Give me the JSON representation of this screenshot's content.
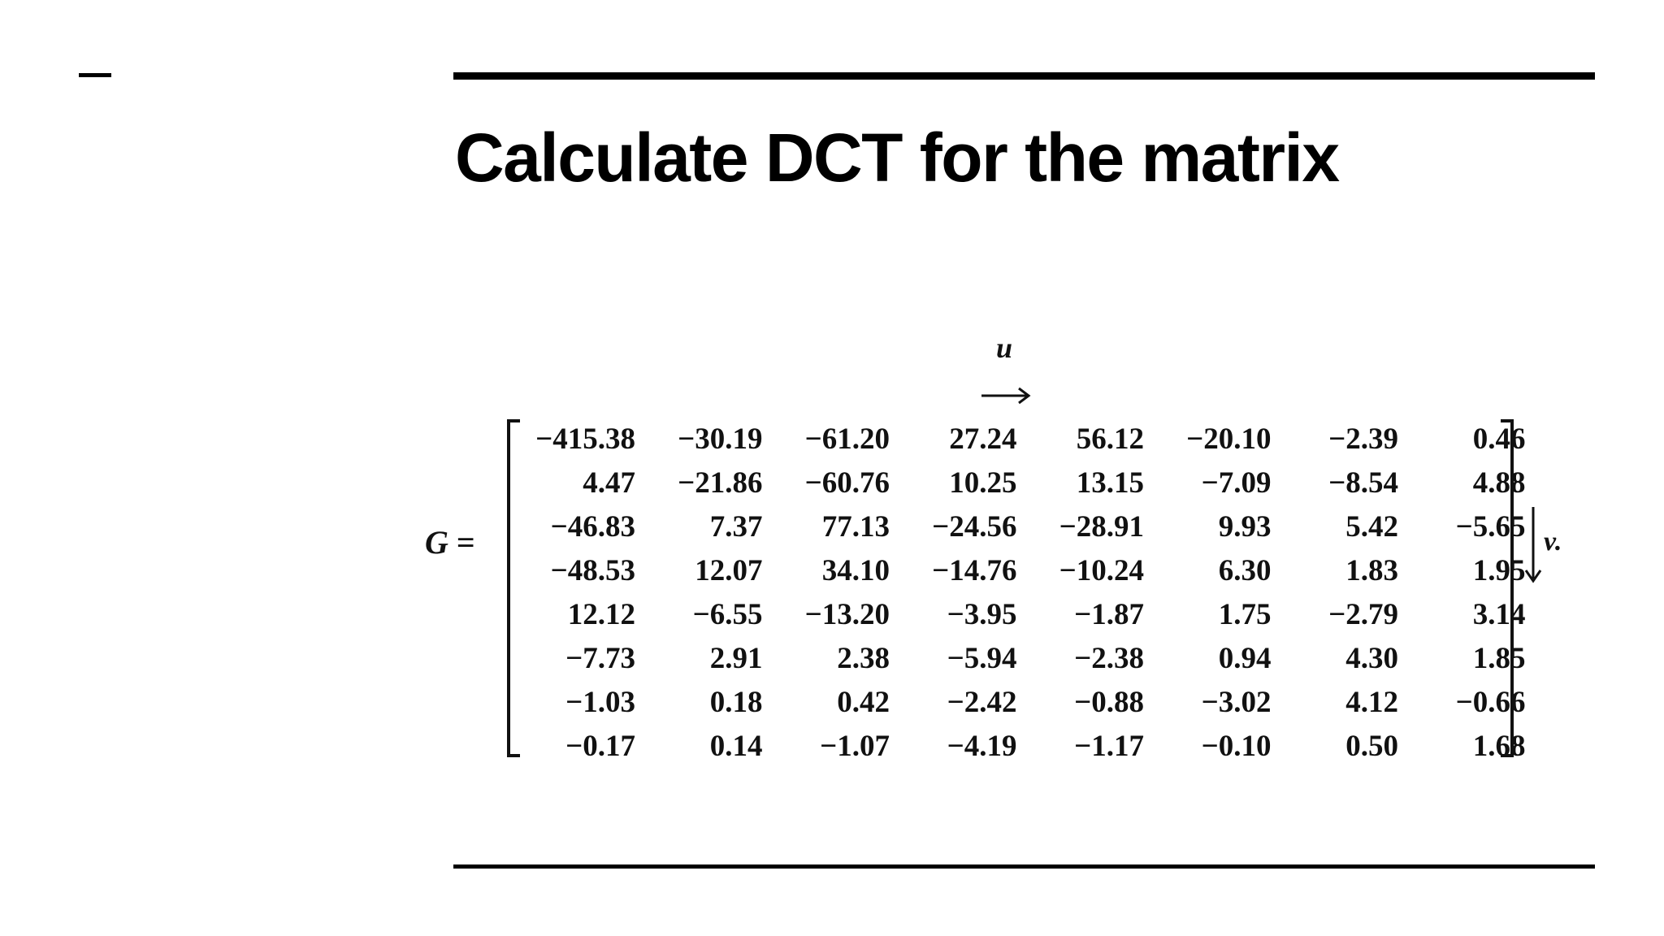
{
  "slide": {
    "title": "Calculate DCT for the matrix"
  },
  "equation": {
    "variable": "G",
    "equals": "=",
    "column_index_label": "u",
    "row_index_label": "v.",
    "matrix": [
      [
        "−415.38",
        "−30.19",
        "−61.20",
        "27.24",
        "56.12",
        "−20.10",
        "−2.39",
        "0.46"
      ],
      [
        "4.47",
        "−21.86",
        "−60.76",
        "10.25",
        "13.15",
        "−7.09",
        "−8.54",
        "4.88"
      ],
      [
        "−46.83",
        "7.37",
        "77.13",
        "−24.56",
        "−28.91",
        "9.93",
        "5.42",
        "−5.65"
      ],
      [
        "−48.53",
        "12.07",
        "34.10",
        "−14.76",
        "−10.24",
        "6.30",
        "1.83",
        "1.95"
      ],
      [
        "12.12",
        "−6.55",
        "−13.20",
        "−3.95",
        "−1.87",
        "1.75",
        "−2.79",
        "3.14"
      ],
      [
        "−7.73",
        "2.91",
        "2.38",
        "−5.94",
        "−2.38",
        "0.94",
        "4.30",
        "1.85"
      ],
      [
        "−1.03",
        "0.18",
        "0.42",
        "−2.42",
        "−0.88",
        "−3.02",
        "4.12",
        "−0.66"
      ],
      [
        "−0.17",
        "0.14",
        "−1.07",
        "−4.19",
        "−1.17",
        "−0.10",
        "0.50",
        "1.68"
      ]
    ]
  }
}
